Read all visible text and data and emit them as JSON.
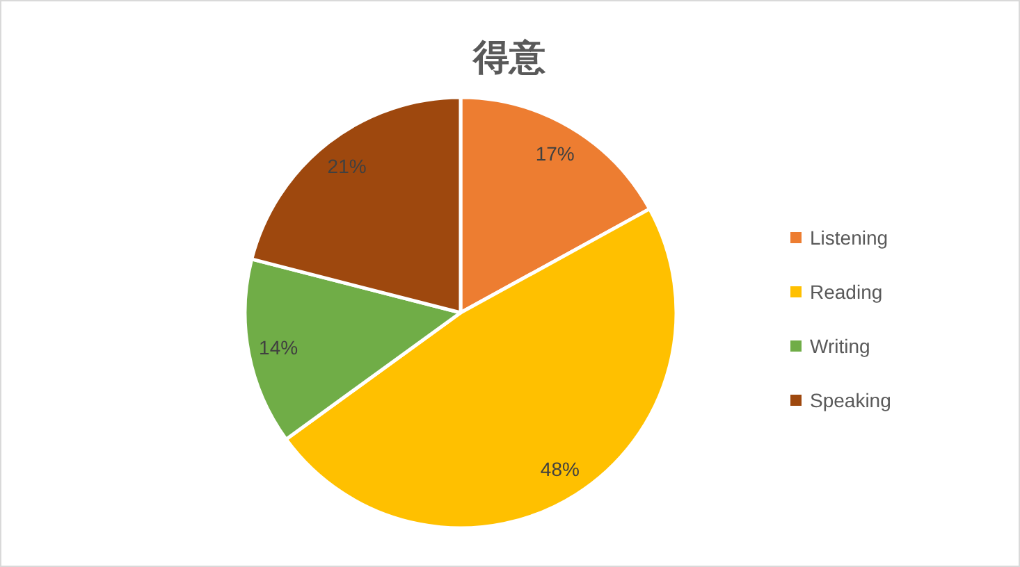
{
  "chart_data": {
    "type": "pie",
    "title": "得意",
    "categories": [
      "Listening",
      "Reading",
      "Writing",
      "Speaking"
    ],
    "values": [
      17,
      48,
      14,
      21
    ],
    "colors": [
      "#ed7d31",
      "#ffc000",
      "#70ad47",
      "#9e480e"
    ],
    "value_labels": [
      "17%",
      "48%",
      "14%",
      "21%"
    ],
    "legend": "right"
  }
}
